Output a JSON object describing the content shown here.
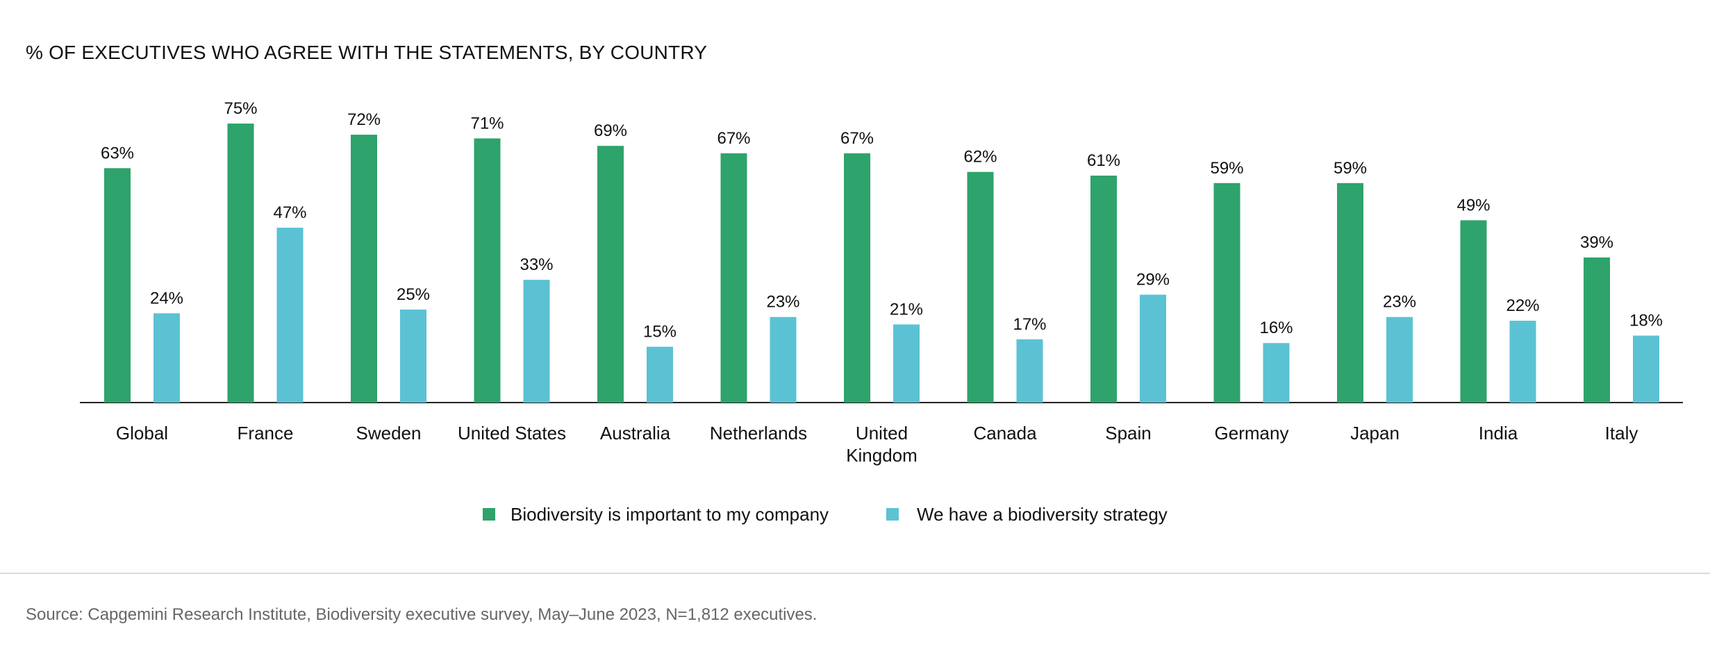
{
  "chart_data": {
    "type": "bar",
    "title": "% OF EXECUTIVES WHO AGREE WITH THE STATEMENTS, BY COUNTRY",
    "categories": [
      "Global",
      "France",
      "Sweden",
      "United States",
      "Australia",
      "Netherlands",
      "United Kingdom",
      "Canada",
      "Spain",
      "Germany",
      "Japan",
      "India",
      "Italy"
    ],
    "category_lines": [
      [
        "Global"
      ],
      [
        "France"
      ],
      [
        "Sweden"
      ],
      [
        "United States"
      ],
      [
        "Australia"
      ],
      [
        "Netherlands"
      ],
      [
        "United",
        "Kingdom"
      ],
      [
        "Canada"
      ],
      [
        "Spain"
      ],
      [
        "Germany"
      ],
      [
        "Japan"
      ],
      [
        "India"
      ],
      [
        "Italy"
      ]
    ],
    "series": [
      {
        "name": "Biodiversity is important to my company",
        "color": "#2ea36b",
        "values": [
          63,
          75,
          72,
          71,
          69,
          67,
          67,
          62,
          61,
          59,
          59,
          49,
          39
        ],
        "labels": [
          "63%",
          "75%",
          "72%",
          "71%",
          "69%",
          "67%",
          "67%",
          "62%",
          "61%",
          "59%",
          "59%",
          "49%",
          "39%"
        ]
      },
      {
        "name": "We have a biodiversity strategy",
        "color": "#5bc2d4",
        "values": [
          24,
          47,
          25,
          33,
          15,
          23,
          21,
          17,
          29,
          16,
          23,
          22,
          18
        ],
        "labels": [
          "24%",
          "47%",
          "25%",
          "33%",
          "15%",
          "23%",
          "21%",
          "17%",
          "29%",
          "16%",
          "23%",
          "22%",
          "18%"
        ]
      }
    ],
    "xlabel": "",
    "ylabel": "",
    "ylim": [
      0,
      100
    ],
    "grid": false,
    "legend": "bottom-center"
  },
  "source": "Source: Capgemini Research Institute, Biodiversity executive survey, May–June 2023, N=1,812 executives."
}
